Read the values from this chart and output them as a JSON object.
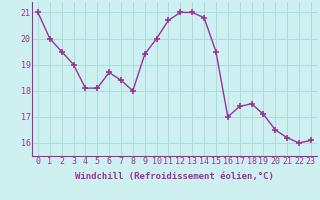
{
  "x": [
    0,
    1,
    2,
    3,
    4,
    5,
    6,
    7,
    8,
    9,
    10,
    11,
    12,
    13,
    14,
    15,
    16,
    17,
    18,
    19,
    20,
    21,
    22,
    23
  ],
  "y": [
    21.0,
    20.0,
    19.5,
    19.0,
    18.1,
    18.1,
    18.7,
    18.4,
    18.0,
    19.4,
    20.0,
    20.7,
    21.0,
    21.0,
    20.8,
    19.5,
    17.0,
    17.4,
    17.5,
    17.1,
    16.5,
    16.2,
    16.0,
    16.1
  ],
  "line_color": "#993399",
  "marker": "+",
  "marker_size": 4,
  "marker_lw": 1.2,
  "bg_color": "#cff0f0",
  "grid_color": "#aadddd",
  "xlabel": "Windchill (Refroidissement éolien,°C)",
  "xlabel_color": "#993399",
  "tick_color": "#993399",
  "axis_color": "#993399",
  "ylim": [
    15.5,
    21.4
  ],
  "xlim": [
    -0.5,
    23.5
  ],
  "yticks": [
    16,
    17,
    18,
    19,
    20,
    21
  ],
  "xticks": [
    0,
    1,
    2,
    3,
    4,
    5,
    6,
    7,
    8,
    9,
    10,
    11,
    12,
    13,
    14,
    15,
    16,
    17,
    18,
    19,
    20,
    21,
    22,
    23
  ],
  "font_family": "monospace",
  "tick_fontsize": 6.0,
  "xlabel_fontsize": 6.5,
  "linewidth": 1.0
}
